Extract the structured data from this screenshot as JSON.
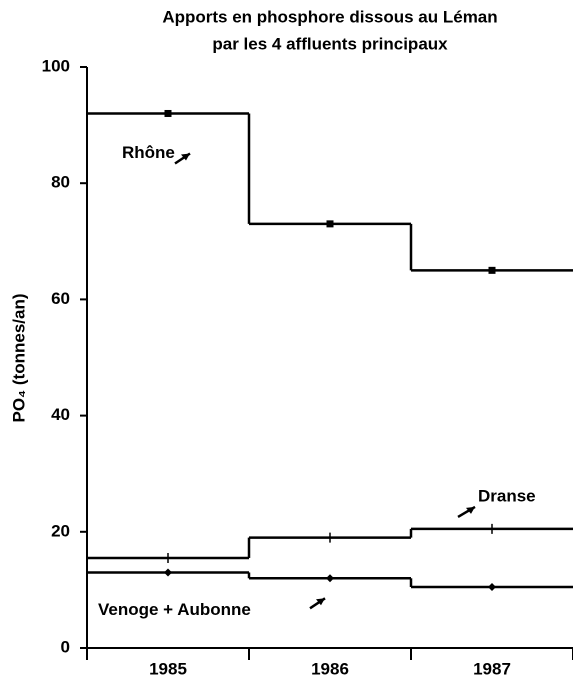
{
  "chart_data": {
    "type": "step",
    "title_lines": [
      "Apports en phosphore dissous au Léman",
      "par les 4 affluents principaux"
    ],
    "y_label": "PO₄ (tonnes/an)",
    "categories": [
      "1985",
      "1986",
      "1987"
    ],
    "series": [
      {
        "name": "Rhône",
        "color": "#000000",
        "marker": "square",
        "values": [
          92,
          73,
          65
        ]
      },
      {
        "name": "Dranse",
        "color": "#000000",
        "marker": "plus",
        "values": [
          15.5,
          19,
          20.5
        ]
      },
      {
        "name": "Venoge + Aubonne",
        "color": "#000000",
        "marker": "diamond",
        "values": [
          13,
          12,
          10.5
        ]
      }
    ],
    "ylim": [
      0,
      100
    ],
    "yticks": [
      0,
      20,
      40,
      60,
      80,
      100
    ]
  }
}
